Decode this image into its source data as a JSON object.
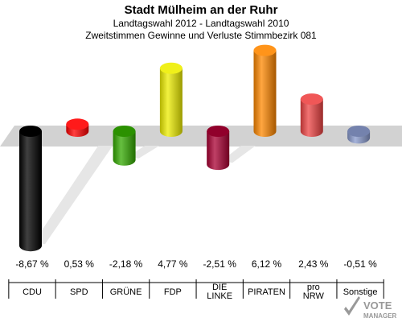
{
  "header": {
    "title": "Stadt Mülheim an der Ruhr",
    "subtitle1": "Landtagswahl 2012 - Landtagswahl 2010",
    "subtitle2": "Zweitstimmen Gewinne und Verluste Stimmbezirk 081"
  },
  "chart_data": {
    "type": "bar",
    "title": "Stadt Mülheim an der Ruhr",
    "subtitle": "Landtagswahl 2012 - Landtagswahl 2010 / Zweitstimmen Gewinne und Verluste Stimmbezirk 081",
    "categories": [
      "CDU",
      "SPD",
      "GRÜNE",
      "FDP",
      "DIE LINKE",
      "PIRATEN",
      "pro NRW",
      "Sonstige"
    ],
    "category_lines": [
      [
        "CDU"
      ],
      [
        "SPD"
      ],
      [
        "GRÜNE"
      ],
      [
        "FDP"
      ],
      [
        "DIE",
        "LINKE"
      ],
      [
        "PIRATEN"
      ],
      [
        "pro",
        "NRW"
      ],
      [
        "Sonstige"
      ]
    ],
    "values": [
      -8.67,
      0.53,
      -2.18,
      4.77,
      -2.51,
      6.12,
      2.43,
      -0.51
    ],
    "value_labels": [
      "-8,67 %",
      "0,53 %",
      "-2,18 %",
      "4,77 %",
      "-2,51 %",
      "6,12 %",
      "2,43 %",
      "-0,51 %"
    ],
    "colors": [
      "#000000",
      "#ff0000",
      "#33aa00",
      "#eeee00",
      "#aa0033",
      "#ff8800",
      "#ee4444",
      "#8899cc"
    ],
    "ylim": [
      -8.67,
      6.12
    ],
    "grid": false,
    "legend": "none"
  },
  "logo": {
    "text": "VOTE",
    "subtext": "MANAGER"
  }
}
